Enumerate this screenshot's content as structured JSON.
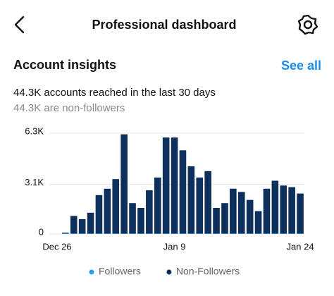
{
  "header": {
    "title": "Professional dashboard"
  },
  "section": {
    "title": "Account insights",
    "link": "See all"
  },
  "summary": {
    "reached": "44.3K accounts reached in the last 30 days",
    "non_followers": "44.3K are non-followers"
  },
  "chart_data": {
    "type": "bar",
    "stacked": true,
    "categories": [
      "Dec 26",
      null,
      null,
      null,
      null,
      null,
      null,
      null,
      null,
      null,
      null,
      null,
      null,
      null,
      "Jan 9",
      null,
      null,
      null,
      null,
      null,
      null,
      null,
      null,
      null,
      null,
      null,
      null,
      null,
      null,
      "Jan 24"
    ],
    "series": [
      {
        "name": "Followers",
        "color": "#2d9bf0",
        "values": [
          0,
          30,
          30,
          30,
          30,
          30,
          30,
          30,
          30,
          30,
          30,
          30,
          30,
          30,
          30,
          30,
          30,
          30,
          30,
          30,
          30,
          30,
          30,
          30,
          30,
          30,
          30,
          30,
          30,
          30
        ]
      },
      {
        "name": "Non-Followers",
        "color": "#0d2f5c",
        "values": [
          0,
          50,
          1100,
          900,
          1300,
          2400,
          2800,
          3400,
          6200,
          1900,
          1600,
          2700,
          3500,
          6000,
          6000,
          5200,
          4200,
          3500,
          3900,
          1600,
          1900,
          2800,
          2600,
          2100,
          1400,
          2800,
          3300,
          3000,
          2900,
          2500
        ]
      }
    ],
    "ylim": [
      0,
      6300
    ],
    "yticks": [
      0,
      {
        "value": 3100,
        "label": "3.1K"
      },
      {
        "value": 6300,
        "label": "6.3K"
      }
    ],
    "grid": true
  }
}
